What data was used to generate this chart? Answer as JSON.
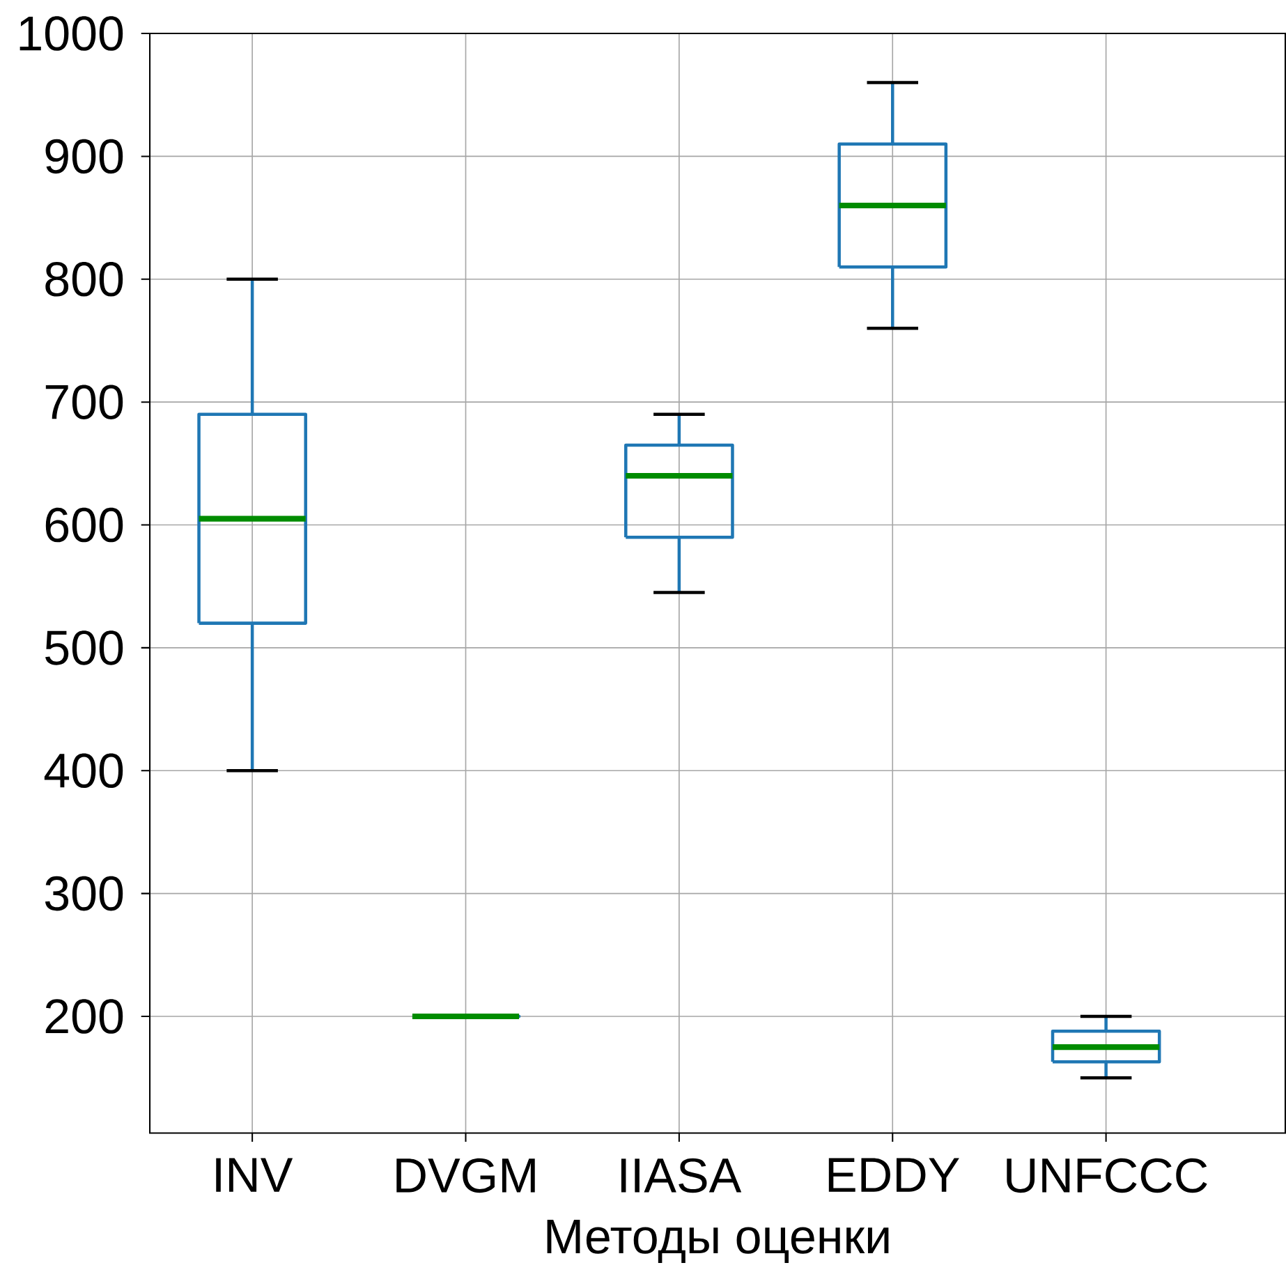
{
  "chart_data": {
    "type": "box",
    "xlabel": "Методы оценки",
    "categories": [
      "INV",
      "DVGM",
      "IIASA",
      "EDDY",
      "UNFCCC"
    ],
    "series": [
      {
        "color": "#1f77b4",
        "boxes": [
          {
            "low": 400,
            "q1": 520,
            "median": 605,
            "q3": 690,
            "high": 800
          },
          {
            "low": 200,
            "q1": 200,
            "median": 200,
            "q3": 200,
            "high": 200
          },
          {
            "low": 545,
            "q1": 590,
            "median": 640,
            "q3": 665,
            "high": 690
          },
          {
            "low": 760,
            "q1": 810,
            "median": 860,
            "q3": 910,
            "high": 960
          },
          {
            "low": 150,
            "q1": 163,
            "median": 175,
            "q3": 188,
            "high": 200
          }
        ]
      }
    ],
    "ylim": [
      105,
      1000
    ],
    "yticks": [
      200,
      300,
      400,
      500,
      600,
      700,
      800,
      900,
      1000
    ],
    "grid": true
  }
}
